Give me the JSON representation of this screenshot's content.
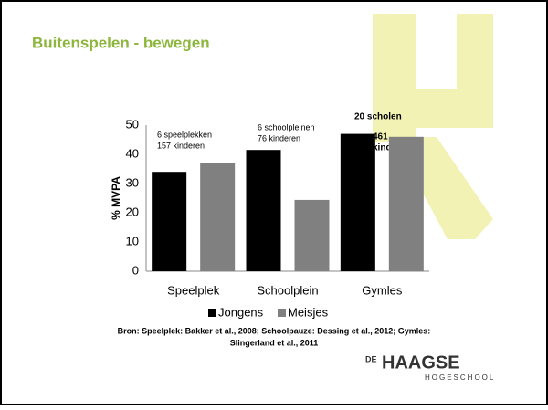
{
  "slide": {
    "title": "Buitenspelen - bewegen",
    "source": [
      "Bron: Speelplek: Bakker et al., 2008; Schoolpauze: Dessing et al., 2012; Gymles:",
      "Slingerland et al., 2011"
    ],
    "logo": {
      "prefix": "DE",
      "name": "HAAGSE",
      "sub": "HOGESCHOOL"
    }
  },
  "chart_data": {
    "type": "bar",
    "ylabel": "% MVPA",
    "categories": [
      "Speelplek",
      "Schoolplein",
      "Gymles"
    ],
    "series": [
      {
        "name": "Jongens",
        "color": "#000000",
        "values": [
          34,
          41.5,
          47
        ]
      },
      {
        "name": "Meisjes",
        "color": "#808080",
        "values": [
          37,
          24.4,
          46
        ]
      }
    ],
    "ylim": [
      0,
      50
    ],
    "yticks": [
      0,
      10,
      20,
      30,
      40,
      50
    ],
    "annotations": [
      [
        "6 speelplekken",
        "157 kinderen"
      ],
      [
        "6 schoolpleinen",
        "76 kinderen"
      ],
      [
        "20 scholen",
        "461",
        "kinderen"
      ]
    ],
    "legend": "bottom"
  }
}
